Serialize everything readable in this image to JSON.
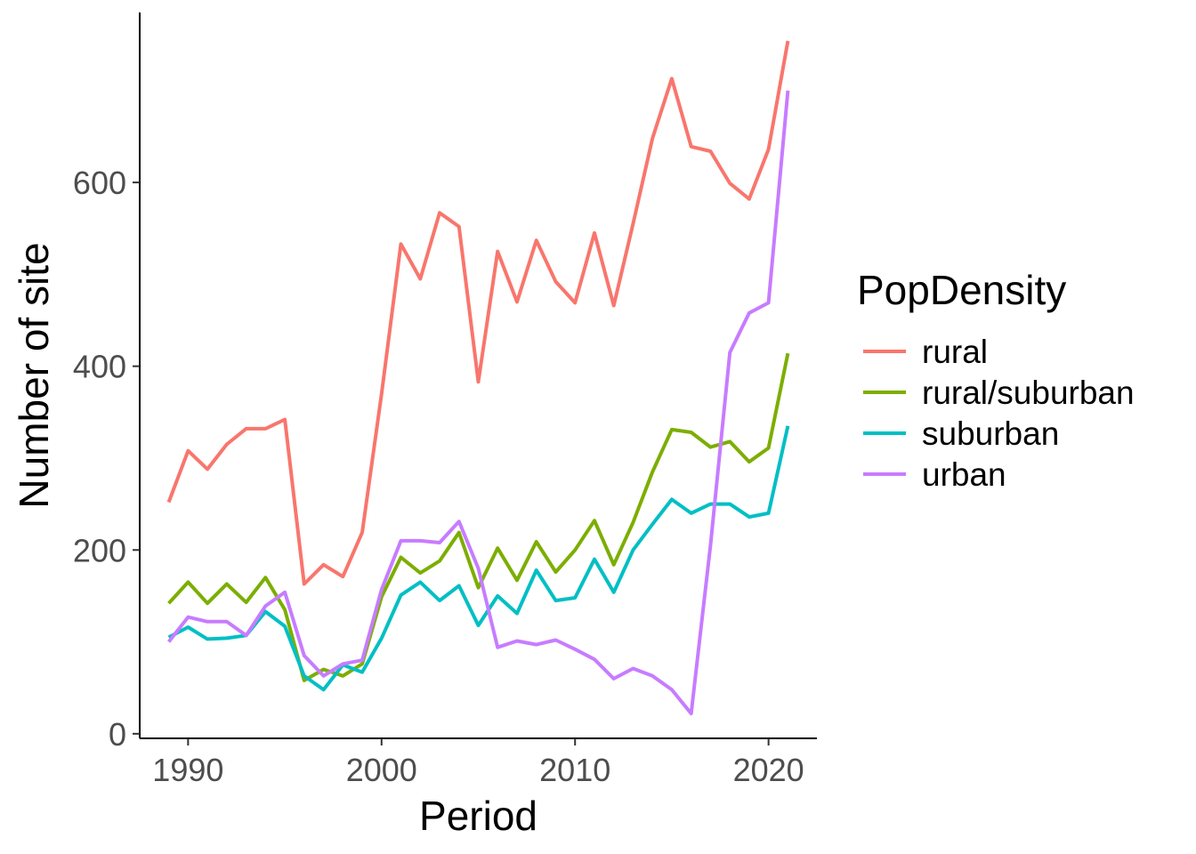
{
  "chart_data": {
    "type": "line",
    "title": "",
    "xlabel": "Period",
    "ylabel": "Number of site",
    "xlim": [
      1987.5,
      2022.5
    ],
    "ylim": [
      -5,
      785
    ],
    "xticks": [
      1990,
      2000,
      2010,
      2020
    ],
    "yticks": [
      0,
      200,
      400,
      600
    ],
    "grid": false,
    "legend": {
      "title": "PopDensity",
      "position": "right"
    },
    "x": [
      1989,
      1990,
      1991,
      1992,
      1993,
      1994,
      1995,
      1996,
      1997,
      1998,
      1999,
      2000,
      2001,
      2002,
      2003,
      2004,
      2005,
      2006,
      2007,
      2008,
      2009,
      2010,
      2011,
      2012,
      2013,
      2014,
      2015,
      2016,
      2017,
      2018,
      2019,
      2020,
      2021
    ],
    "series": [
      {
        "name": "rural",
        "color": "#F8766D",
        "values": [
          252,
          308,
          288,
          315,
          332,
          332,
          342,
          163,
          184,
          171,
          219,
          370,
          533,
          495,
          567,
          552,
          383,
          525,
          470,
          537,
          492,
          469,
          545,
          466,
          555,
          648,
          713,
          639,
          634,
          599,
          582,
          636,
          754
        ]
      },
      {
        "name": "rural/suburban",
        "color": "#7CAE00",
        "values": [
          142,
          165,
          142,
          163,
          143,
          170,
          135,
          58,
          70,
          63,
          76,
          149,
          192,
          175,
          188,
          219,
          159,
          202,
          167,
          209,
          176,
          200,
          232,
          184,
          230,
          285,
          331,
          328,
          312,
          318,
          296,
          311,
          414
        ]
      },
      {
        "name": "suburban",
        "color": "#00BFC4",
        "values": [
          105,
          116,
          103,
          104,
          107,
          133,
          117,
          63,
          48,
          75,
          67,
          104,
          151,
          165,
          145,
          161,
          118,
          150,
          131,
          178,
          145,
          148,
          190,
          154,
          200,
          228,
          255,
          240,
          250,
          250,
          236,
          240,
          335
        ]
      },
      {
        "name": "urban",
        "color": "#C77CFF",
        "values": [
          100,
          127,
          122,
          122,
          107,
          139,
          154,
          85,
          63,
          76,
          80,
          157,
          210,
          210,
          208,
          231,
          180,
          94,
          101,
          97,
          102,
          92,
          81,
          60,
          71,
          63,
          48,
          22,
          205,
          415,
          458,
          469,
          700
        ]
      }
    ]
  }
}
